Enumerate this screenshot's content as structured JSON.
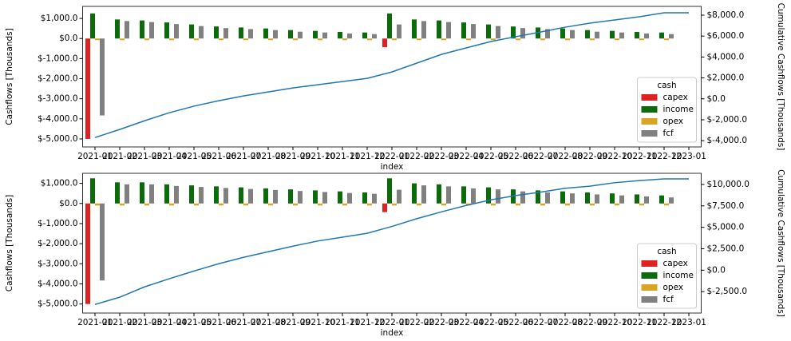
{
  "chart_data": [
    {
      "type": "bar",
      "xlabel": "index",
      "ylabel": "Cashflows [Thousands]",
      "y2label": "Cumulative Cashflows [Thousands]",
      "categories": [
        "2021-01",
        "2021-02",
        "2021-03",
        "2021-04",
        "2021-05",
        "2021-06",
        "2021-07",
        "2021-08",
        "2021-09",
        "2021-10",
        "2021-11",
        "2021-12",
        "2022-01",
        "2022-02",
        "2022-03",
        "2022-04",
        "2022-05",
        "2022-06",
        "2022-07",
        "2022-08",
        "2022-09",
        "2022-10",
        "2022-11",
        "2022-12",
        "2023-01"
      ],
      "series": [
        {
          "name": "capex",
          "color": "#dd2222",
          "values": [
            -5000,
            0,
            0,
            0,
            0,
            0,
            0,
            0,
            0,
            0,
            0,
            0,
            -430,
            0,
            0,
            0,
            0,
            0,
            0,
            0,
            0,
            0,
            0,
            0,
            null
          ]
        },
        {
          "name": "income",
          "color": "#0b6b0b",
          "values": [
            1250,
            950,
            900,
            800,
            700,
            600,
            550,
            500,
            420,
            380,
            330,
            300,
            1250,
            950,
            900,
            800,
            700,
            600,
            550,
            500,
            420,
            380,
            330,
            300,
            null
          ]
        },
        {
          "name": "opex",
          "color": "#daa520",
          "values": [
            -80,
            -80,
            -80,
            -80,
            -80,
            -80,
            -80,
            -80,
            -80,
            -80,
            -80,
            -80,
            -80,
            -80,
            -80,
            -80,
            -80,
            -80,
            -80,
            -80,
            -80,
            -80,
            -80,
            -80,
            null
          ]
        },
        {
          "name": "fcf",
          "color": "#808080",
          "values": [
            -3830,
            870,
            820,
            720,
            620,
            520,
            470,
            420,
            340,
            300,
            250,
            220,
            700,
            870,
            820,
            720,
            620,
            520,
            470,
            420,
            340,
            300,
            250,
            220,
            null
          ]
        }
      ],
      "line": {
        "color": "#1f77b4",
        "axis": "y2",
        "values": [
          -3700,
          -2930,
          -2100,
          -1330,
          -700,
          -180,
          280,
          660,
          1040,
          1350,
          1650,
          1960,
          2570,
          3410,
          4250,
          4870,
          5480,
          5940,
          6390,
          6850,
          7240,
          7540,
          7850,
          8230,
          8230
        ]
      },
      "ylim": [
        -5400,
        1600
      ],
      "yticks": [
        {
          "value": -5000,
          "label": "$-5,000.0"
        },
        {
          "value": -4000,
          "label": "$-4,000.0"
        },
        {
          "value": -3000,
          "label": "$-3,000.0"
        },
        {
          "value": -2000,
          "label": "$-2,000.0"
        },
        {
          "value": -1000,
          "label": "$-1,000.0"
        },
        {
          "value": 0,
          "label": "$0.0"
        },
        {
          "value": 1000,
          "label": "$1,000.0"
        }
      ],
      "y2lim": [
        -4600,
        8840
      ],
      "y2ticks": [
        {
          "value": -4000,
          "label": "$-4,000.0"
        },
        {
          "value": -2000,
          "label": "$-2,000.0"
        },
        {
          "value": 0,
          "label": "$0.0"
        },
        {
          "value": 2000,
          "label": "$2,000.0"
        },
        {
          "value": 4000,
          "label": "$4,000.0"
        },
        {
          "value": 6000,
          "label": "$6,000.0"
        },
        {
          "value": 8000,
          "label": "$8,000.0"
        }
      ],
      "legend": {
        "title": "cash",
        "loc": "lower right"
      }
    },
    {
      "type": "bar",
      "xlabel": "index",
      "ylabel": "Cashflows [Thousands]",
      "y2label": "Cumulative Cashflows [Thousands]",
      "categories": [
        "2021-01",
        "2021-02",
        "2021-03",
        "2021-04",
        "2021-05",
        "2021-06",
        "2021-07",
        "2021-08",
        "2021-09",
        "2021-10",
        "2021-11",
        "2021-12",
        "2022-01",
        "2022-02",
        "2022-03",
        "2022-04",
        "2022-05",
        "2022-06",
        "2022-07",
        "2022-08",
        "2022-09",
        "2022-10",
        "2022-11",
        "2022-12",
        "2023-01"
      ],
      "series": [
        {
          "name": "capex",
          "color": "#dd2222",
          "values": [
            -5000,
            0,
            0,
            0,
            0,
            0,
            0,
            0,
            0,
            0,
            0,
            0,
            -430,
            0,
            0,
            0,
            0,
            0,
            0,
            0,
            0,
            0,
            0,
            0,
            null
          ]
        },
        {
          "name": "income",
          "color": "#0b6b0b",
          "values": [
            1250,
            1050,
            1050,
            950,
            900,
            850,
            800,
            750,
            700,
            650,
            600,
            550,
            1250,
            1000,
            950,
            850,
            800,
            700,
            650,
            600,
            550,
            500,
            450,
            400,
            null
          ]
        },
        {
          "name": "opex",
          "color": "#daa520",
          "values": [
            -100,
            -100,
            -100,
            -100,
            -100,
            -100,
            -100,
            -100,
            -100,
            -100,
            -100,
            -100,
            -100,
            -100,
            -100,
            -100,
            -100,
            -100,
            -100,
            -100,
            -100,
            -100,
            -100,
            -100,
            null
          ]
        },
        {
          "name": "fcf",
          "color": "#808080",
          "values": [
            -3830,
            950,
            950,
            870,
            820,
            770,
            720,
            670,
            620,
            570,
            520,
            480,
            680,
            900,
            850,
            750,
            700,
            600,
            550,
            500,
            450,
            400,
            350,
            300,
            null
          ]
        }
      ],
      "line": {
        "color": "#1f77b4",
        "axis": "y2",
        "values": [
          -4000,
          -3150,
          -1950,
          -1000,
          -100,
          750,
          1500,
          2150,
          2800,
          3400,
          3850,
          4300,
          5100,
          6000,
          6800,
          7550,
          8200,
          8700,
          9100,
          9550,
          9800,
          10200,
          10450,
          10650,
          10650
        ]
      },
      "ylim": [
        -5450,
        1500
      ],
      "yticks": [
        {
          "value": -5000,
          "label": "$-5,000.0"
        },
        {
          "value": -4000,
          "label": "$-4,000.0"
        },
        {
          "value": -3000,
          "label": "$-3,000.0"
        },
        {
          "value": -2000,
          "label": "$-2,000.0"
        },
        {
          "value": -1000,
          "label": "$-1,000.0"
        },
        {
          "value": 0,
          "label": "$0.0"
        },
        {
          "value": 1000,
          "label": "$1,000.0"
        }
      ],
      "y2lim": [
        -5000,
        11300
      ],
      "y2ticks": [
        {
          "value": -2500,
          "label": "$-2,500.0"
        },
        {
          "value": 0,
          "label": "$0.0"
        },
        {
          "value": 2500,
          "label": "$2,500.0"
        },
        {
          "value": 5000,
          "label": "$5,000.0"
        },
        {
          "value": 7500,
          "label": "$7,500.0"
        },
        {
          "value": 10000,
          "label": "$10,000.0"
        }
      ],
      "legend": {
        "title": "cash",
        "loc": "lower right"
      }
    }
  ]
}
